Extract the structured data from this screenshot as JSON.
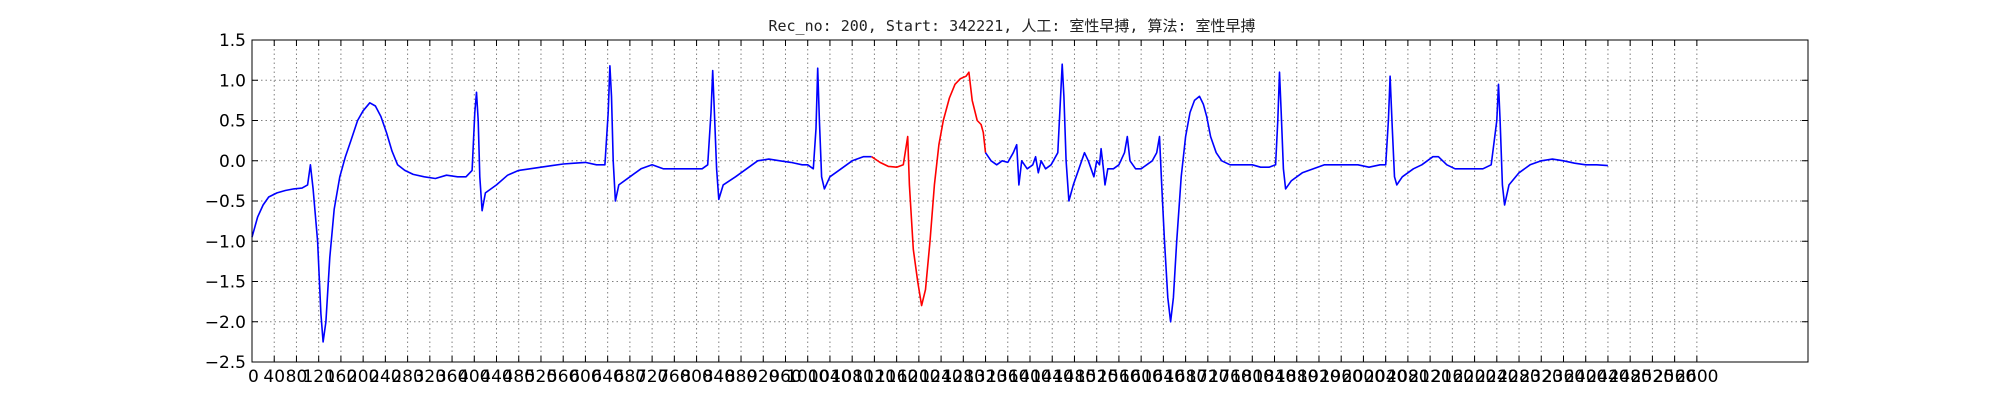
{
  "chart_data": {
    "type": "line",
    "title": "Rec_no: 200, Start: 342221, 人工: 室性早搏, 算法: 室性早搏",
    "xlabel": "",
    "ylabel": "",
    "xlim": [
      0,
      2800
    ],
    "ylim": [
      -2.5,
      1.5
    ],
    "grid": true,
    "yticks": [
      1.5,
      1.0,
      0.5,
      0.0,
      -0.5,
      -1.0,
      -1.5,
      -2.0,
      -2.5
    ],
    "ytick_labels": [
      "1.5",
      "1.0",
      "0.5",
      "0.0",
      "−0.5",
      "−1.0",
      "−1.5",
      "−2.0",
      "−2.5"
    ],
    "xtick_step": 40,
    "xtick_labels": [
      "0",
      "40",
      "80",
      "120",
      "160",
      "200",
      "240",
      "280",
      "320",
      "360",
      "400",
      "440",
      "480",
      "520",
      "560",
      "600",
      "640",
      "680",
      "720",
      "760",
      "800",
      "840",
      "880",
      "920",
      "960",
      "1000",
      "1040",
      "1080",
      "1120",
      "1160",
      "1200",
      "1240",
      "1280",
      "1320",
      "1360",
      "1400",
      "1440",
      "1480",
      "1520",
      "1560",
      "1600",
      "1640",
      "1680",
      "1720",
      "1760",
      "1800",
      "1840",
      "1880",
      "1920",
      "1960",
      "2000",
      "2040",
      "2080",
      "2120",
      "2160",
      "2200",
      "2240",
      "2280",
      "2320",
      "2360",
      "2400",
      "2440",
      "2480",
      "2520",
      "2560",
      "2600"
    ],
    "series": [
      {
        "color": "#0000ff",
        "points": [
          [
            0,
            -0.95
          ],
          [
            10,
            -0.7
          ],
          [
            20,
            -0.55
          ],
          [
            30,
            -0.45
          ],
          [
            45,
            -0.4
          ],
          [
            60,
            -0.37
          ],
          [
            75,
            -0.35
          ],
          [
            90,
            -0.34
          ],
          [
            100,
            -0.3
          ],
          [
            105,
            -0.05
          ],
          [
            110,
            -0.35
          ],
          [
            118,
            -1.0
          ],
          [
            124,
            -1.9
          ],
          [
            128,
            -2.25
          ],
          [
            133,
            -2.0
          ],
          [
            140,
            -1.2
          ],
          [
            148,
            -0.6
          ],
          [
            158,
            -0.2
          ],
          [
            168,
            0.05
          ],
          [
            178,
            0.25
          ],
          [
            190,
            0.5
          ],
          [
            200,
            0.62
          ],
          [
            212,
            0.72
          ],
          [
            222,
            0.68
          ],
          [
            232,
            0.55
          ],
          [
            242,
            0.35
          ],
          [
            252,
            0.12
          ],
          [
            262,
            -0.05
          ],
          [
            275,
            -0.12
          ],
          [
            290,
            -0.17
          ],
          [
            310,
            -0.2
          ],
          [
            330,
            -0.22
          ],
          [
            350,
            -0.18
          ],
          [
            370,
            -0.2
          ],
          [
            385,
            -0.2
          ],
          [
            396,
            -0.12
          ],
          [
            401,
            0.6
          ],
          [
            404,
            0.85
          ],
          [
            407,
            0.5
          ],
          [
            410,
            -0.2
          ],
          [
            414,
            -0.62
          ],
          [
            420,
            -0.4
          ],
          [
            440,
            -0.3
          ],
          [
            460,
            -0.18
          ],
          [
            480,
            -0.12
          ],
          [
            500,
            -0.1
          ],
          [
            520,
            -0.08
          ],
          [
            540,
            -0.06
          ],
          [
            560,
            -0.04
          ],
          [
            580,
            -0.03
          ],
          [
            600,
            -0.02
          ],
          [
            620,
            -0.05
          ],
          [
            635,
            -0.05
          ],
          [
            641,
            0.6
          ],
          [
            644,
            1.18
          ],
          [
            647,
            0.8
          ],
          [
            650,
            0.0
          ],
          [
            654,
            -0.5
          ],
          [
            660,
            -0.3
          ],
          [
            680,
            -0.2
          ],
          [
            700,
            -0.1
          ],
          [
            720,
            -0.05
          ],
          [
            740,
            -0.1
          ],
          [
            760,
            -0.1
          ],
          [
            790,
            -0.1
          ],
          [
            810,
            -0.1
          ],
          [
            820,
            -0.05
          ],
          [
            826,
            0.6
          ],
          [
            829,
            1.12
          ],
          [
            832,
            0.6
          ],
          [
            836,
            -0.1
          ],
          [
            840,
            -0.48
          ],
          [
            848,
            -0.3
          ],
          [
            870,
            -0.2
          ],
          [
            890,
            -0.1
          ],
          [
            910,
            0.0
          ],
          [
            930,
            0.02
          ],
          [
            950,
            0.0
          ],
          [
            970,
            -0.02
          ],
          [
            990,
            -0.05
          ],
          [
            1000,
            -0.05
          ],
          [
            1010,
            -0.1
          ],
          [
            1015,
            0.4
          ],
          [
            1018,
            1.15
          ],
          [
            1021,
            0.5
          ],
          [
            1025,
            -0.2
          ],
          [
            1030,
            -0.35
          ],
          [
            1040,
            -0.2
          ],
          [
            1060,
            -0.1
          ],
          [
            1080,
            0.0
          ],
          [
            1100,
            0.05
          ],
          [
            1115,
            0.05
          ]
        ]
      },
      {
        "color": "#ff0000",
        "points": [
          [
            1115,
            0.05
          ],
          [
            1130,
            -0.02
          ],
          [
            1145,
            -0.07
          ],
          [
            1160,
            -0.08
          ],
          [
            1172,
            -0.05
          ],
          [
            1180,
            0.3
          ],
          [
            1183,
            -0.3
          ],
          [
            1190,
            -1.1
          ],
          [
            1198,
            -1.5
          ],
          [
            1205,
            -1.8
          ],
          [
            1212,
            -1.6
          ],
          [
            1220,
            -1.0
          ],
          [
            1228,
            -0.3
          ],
          [
            1236,
            0.2
          ],
          [
            1244,
            0.5
          ],
          [
            1255,
            0.78
          ],
          [
            1265,
            0.95
          ],
          [
            1275,
            1.02
          ],
          [
            1285,
            1.05
          ],
          [
            1290,
            1.1
          ],
          [
            1296,
            0.75
          ],
          [
            1305,
            0.5
          ],
          [
            1312,
            0.45
          ],
          [
            1316,
            0.35
          ],
          [
            1320,
            0.1
          ]
        ]
      },
      {
        "color": "#0000ff",
        "points": [
          [
            1320,
            0.1
          ],
          [
            1330,
            0.0
          ],
          [
            1340,
            -0.05
          ],
          [
            1350,
            0.0
          ],
          [
            1360,
            -0.02
          ],
          [
            1370,
            0.1
          ],
          [
            1376,
            0.2
          ],
          [
            1380,
            -0.3
          ],
          [
            1385,
            0.0
          ],
          [
            1395,
            -0.1
          ],
          [
            1405,
            -0.05
          ],
          [
            1410,
            0.05
          ],
          [
            1415,
            -0.15
          ],
          [
            1420,
            0.0
          ],
          [
            1428,
            -0.1
          ],
          [
            1438,
            -0.05
          ],
          [
            1450,
            0.1
          ],
          [
            1455,
            0.8
          ],
          [
            1458,
            1.2
          ],
          [
            1461,
            0.8
          ],
          [
            1465,
            0.0
          ],
          [
            1470,
            -0.5
          ],
          [
            1478,
            -0.3
          ],
          [
            1488,
            -0.1
          ],
          [
            1498,
            0.1
          ],
          [
            1505,
            0.0
          ],
          [
            1510,
            -0.1
          ],
          [
            1515,
            -0.2
          ],
          [
            1520,
            0.0
          ],
          [
            1525,
            -0.05
          ],
          [
            1528,
            0.15
          ],
          [
            1532,
            -0.1
          ],
          [
            1535,
            -0.3
          ],
          [
            1540,
            -0.1
          ],
          [
            1550,
            -0.1
          ],
          [
            1560,
            -0.05
          ],
          [
            1570,
            0.1
          ],
          [
            1575,
            0.3
          ],
          [
            1580,
            0.0
          ],
          [
            1590,
            -0.1
          ],
          [
            1600,
            -0.1
          ],
          [
            1610,
            -0.05
          ],
          [
            1620,
            0.0
          ],
          [
            1628,
            0.1
          ],
          [
            1633,
            0.3
          ],
          [
            1637,
            -0.3
          ],
          [
            1642,
            -1.0
          ],
          [
            1648,
            -1.7
          ],
          [
            1653,
            -2.0
          ],
          [
            1658,
            -1.7
          ],
          [
            1664,
            -1.0
          ],
          [
            1672,
            -0.2
          ],
          [
            1680,
            0.3
          ],
          [
            1688,
            0.6
          ],
          [
            1696,
            0.75
          ],
          [
            1705,
            0.8
          ],
          [
            1712,
            0.7
          ],
          [
            1718,
            0.55
          ],
          [
            1725,
            0.3
          ],
          [
            1735,
            0.1
          ],
          [
            1745,
            0.0
          ],
          [
            1760,
            -0.05
          ],
          [
            1780,
            -0.05
          ],
          [
            1800,
            -0.05
          ],
          [
            1815,
            -0.08
          ],
          [
            1830,
            -0.08
          ],
          [
            1842,
            -0.05
          ],
          [
            1846,
            0.5
          ],
          [
            1849,
            1.1
          ],
          [
            1852,
            0.6
          ],
          [
            1856,
            -0.1
          ],
          [
            1860,
            -0.35
          ],
          [
            1870,
            -0.25
          ],
          [
            1890,
            -0.15
          ],
          [
            1910,
            -0.1
          ],
          [
            1930,
            -0.05
          ],
          [
            1950,
            -0.05
          ],
          [
            1970,
            -0.05
          ],
          [
            1990,
            -0.05
          ],
          [
            2010,
            -0.08
          ],
          [
            2030,
            -0.05
          ],
          [
            2040,
            -0.05
          ],
          [
            2045,
            0.5
          ],
          [
            2048,
            1.05
          ],
          [
            2052,
            0.4
          ],
          [
            2056,
            -0.2
          ],
          [
            2060,
            -0.3
          ],
          [
            2070,
            -0.2
          ],
          [
            2090,
            -0.1
          ],
          [
            2105,
            -0.05
          ],
          [
            2115,
            0.0
          ],
          [
            2125,
            0.05
          ],
          [
            2135,
            0.05
          ],
          [
            2150,
            -0.05
          ],
          [
            2165,
            -0.1
          ],
          [
            2180,
            -0.1
          ],
          [
            2200,
            -0.1
          ],
          [
            2215,
            -0.1
          ],
          [
            2230,
            -0.05
          ],
          [
            2240,
            0.5
          ],
          [
            2243,
            0.95
          ],
          [
            2246,
            0.5
          ],
          [
            2250,
            -0.3
          ],
          [
            2254,
            -0.55
          ],
          [
            2262,
            -0.3
          ],
          [
            2280,
            -0.15
          ],
          [
            2300,
            -0.05
          ],
          [
            2320,
            0.0
          ],
          [
            2340,
            0.02
          ],
          [
            2360,
            0.0
          ],
          [
            2380,
            -0.03
          ],
          [
            2400,
            -0.05
          ],
          [
            2420,
            -0.05
          ],
          [
            2440,
            -0.06
          ]
        ]
      }
    ]
  }
}
